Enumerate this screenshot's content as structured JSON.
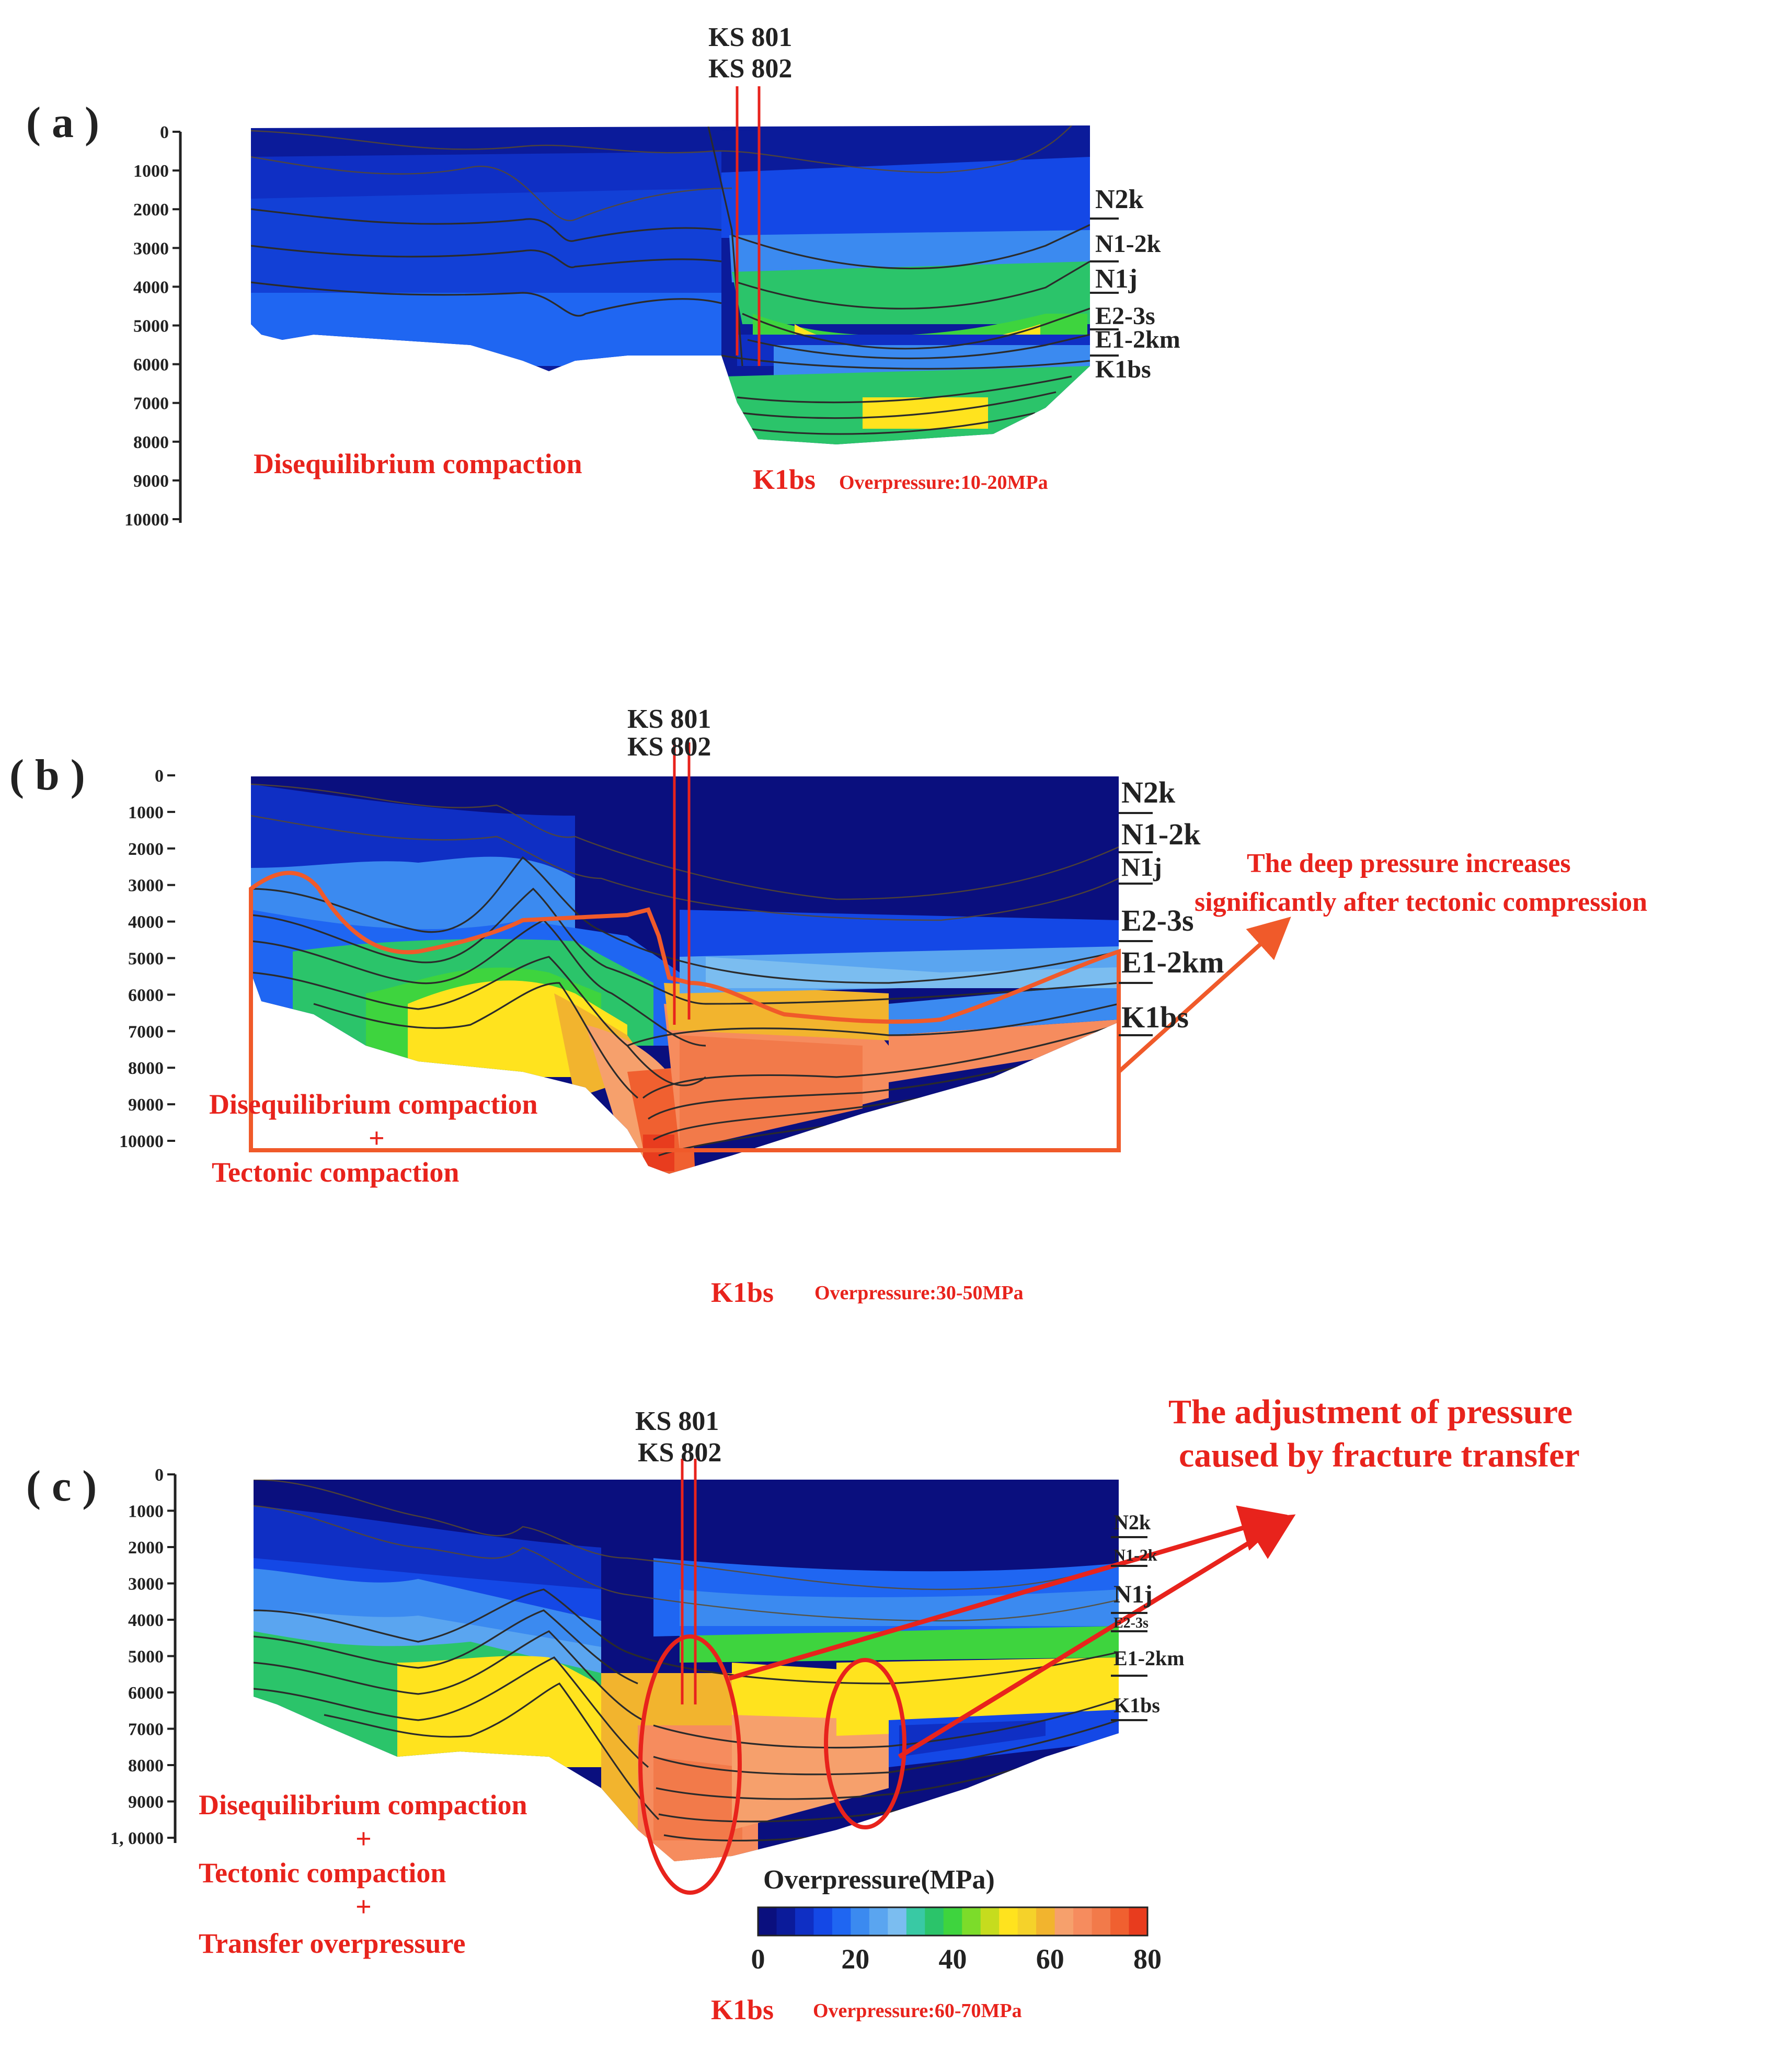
{
  "colors": {
    "accent_red": "#e8231c",
    "arrow_orange": "#f05a2a",
    "text_dark": "#222222",
    "scale": [
      "#0a0f7e",
      "#0b1b9a",
      "#0f2fc4",
      "#1448e6",
      "#1f66f2",
      "#3b8af0",
      "#5aa5f0",
      "#7bbdf0",
      "#39c9a4",
      "#2bc46a",
      "#3ed43e",
      "#7cdc2a",
      "#c6dc1e",
      "#ffe31e",
      "#f5d22a",
      "#f2b42e",
      "#f6a06c",
      "#f68c5e",
      "#f27a4a",
      "#f06030",
      "#e83c1e"
    ]
  },
  "panels": [
    {
      "id": "a",
      "label": "( a )",
      "wells": [
        "KS 801",
        "KS 802"
      ],
      "depth_ticks": [
        "0",
        "1000",
        "2000",
        "3000",
        "4000",
        "5000",
        "6000",
        "7000",
        "8000",
        "9000",
        "10000"
      ],
      "formations": [
        "N2k",
        "N1-2k",
        "N1j",
        "E2-3s",
        "E1-2km",
        "K1bs"
      ],
      "mechanism": [
        "Disequilibrium compaction"
      ],
      "layer": "K1bs",
      "overpressure": "Overpressure:10-20MPa"
    },
    {
      "id": "b",
      "label": "( b )",
      "wells": [
        "KS 801",
        "KS 802"
      ],
      "depth_ticks": [
        "0",
        "1000",
        "2000",
        "3000",
        "4000",
        "5000",
        "6000",
        "7000",
        "8000",
        "9000",
        "10000"
      ],
      "formations": [
        "N2k",
        "N1-2k",
        "N1j",
        "E2-3s",
        "E1-2km",
        "K1bs"
      ],
      "mechanism": [
        "Disequilibrium compaction",
        "+",
        "Tectonic compaction"
      ],
      "annotation": [
        "The deep pressure increases",
        "significantly after tectonic compression"
      ],
      "layer": "K1bs",
      "overpressure": "Overpressure:30-50MPa"
    },
    {
      "id": "c",
      "label": "( c )",
      "wells": [
        "KS 801",
        "KS 802"
      ],
      "depth_ticks": [
        "0",
        "1000",
        "2000",
        "3000",
        "4000",
        "5000",
        "6000",
        "7000",
        "8000",
        "9000",
        "1, 0000"
      ],
      "formations": [
        "N2k",
        "N1-2k",
        "N1j",
        "E2-3s",
        "E1-2km",
        "K1bs"
      ],
      "mechanism": [
        "Disequilibrium compaction",
        "+",
        "Tectonic compaction",
        "+",
        "Transfer overpressure"
      ],
      "annotation": [
        "The adjustment of pressure",
        "caused by fracture transfer"
      ],
      "legend_title": "Overpressure(MPa)",
      "legend_ticks": [
        "0",
        "20",
        "40",
        "60",
        "80"
      ],
      "layer": "K1bs",
      "overpressure": "Overpressure:60-70MPa"
    }
  ]
}
